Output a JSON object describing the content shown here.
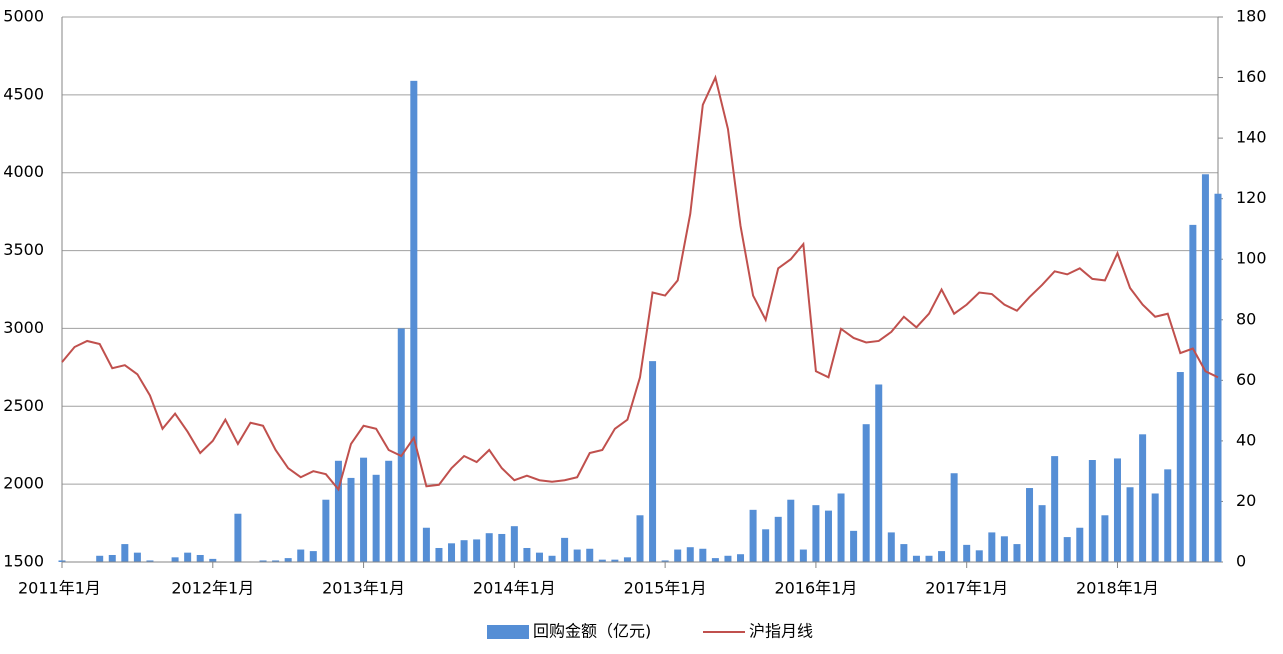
{
  "chart_data": {
    "type": "bar_line",
    "categories": [
      "2011年1月",
      null,
      null,
      null,
      null,
      null,
      null,
      null,
      null,
      null,
      null,
      null,
      "2012年1月",
      null,
      null,
      null,
      null,
      null,
      null,
      null,
      null,
      null,
      null,
      null,
      "2013年1月",
      null,
      null,
      null,
      null,
      null,
      null,
      null,
      null,
      null,
      null,
      null,
      "2014年1月",
      null,
      null,
      null,
      null,
      null,
      null,
      null,
      null,
      null,
      null,
      null,
      "2015年1月",
      null,
      null,
      null,
      null,
      null,
      null,
      null,
      null,
      null,
      null,
      null,
      "2016年1月",
      null,
      null,
      null,
      null,
      null,
      null,
      null,
      null,
      null,
      null,
      null,
      "2017年1月",
      null,
      null,
      null,
      null,
      null,
      null,
      null,
      null,
      null,
      null,
      null,
      "2018年1月",
      null,
      null,
      null,
      null,
      null,
      null,
      null,
      null
    ],
    "series": [
      {
        "name": "回购金额（亿元)",
        "type": "bar",
        "color": "#558ed5",
        "values": [
          1510,
          null,
          null,
          1540,
          1545,
          1615,
          1560,
          1510,
          null,
          1530,
          1560,
          1545,
          1520,
          null,
          1810,
          null,
          1510,
          1510,
          1525,
          1580,
          1570,
          1900,
          2150,
          2040,
          2170,
          2060,
          2150,
          3000,
          4590,
          1720,
          1590,
          1620,
          1640,
          1645,
          1685,
          1680,
          1730,
          1590,
          1560,
          1540,
          1655,
          1580,
          1585,
          1515,
          1515,
          1530,
          1800,
          2790,
          1510,
          1580,
          1595,
          1585,
          1525,
          1540,
          1550,
          1835,
          1710,
          1790,
          1900,
          1580,
          1865,
          1830,
          1940,
          1700,
          2385,
          2640,
          1690,
          1615,
          1540,
          1540,
          1570,
          2070,
          1610,
          1575,
          1690,
          1665,
          1615,
          1975,
          1865,
          2180,
          1660,
          1720,
          2155,
          1800,
          2165,
          1980,
          2320,
          1940,
          2095,
          2720,
          3665,
          3990,
          3865
        ]
      },
      {
        "name": "沪指月线",
        "type": "line",
        "axis": "y2",
        "color": "#c0504d",
        "values": [
          66,
          71,
          73,
          72,
          64,
          65,
          62,
          55,
          44,
          49,
          43,
          36,
          40,
          47,
          39,
          46,
          45,
          37,
          31,
          28,
          30,
          29,
          24,
          39,
          45,
          44,
          37,
          35,
          41,
          25,
          25.5,
          31,
          35,
          33,
          37,
          31,
          27,
          28.5,
          27,
          26.5,
          27,
          28,
          36,
          37,
          44,
          47,
          61,
          89,
          88,
          93,
          115,
          151,
          160,
          143,
          111,
          88,
          80,
          97,
          100,
          105,
          63,
          61,
          77,
          74,
          72.5,
          73,
          76,
          81,
          77.5,
          82,
          90,
          82,
          85,
          89,
          88.5,
          85,
          83,
          87.5,
          91.5,
          96,
          95,
          97,
          93.5,
          93,
          102,
          90.5,
          85,
          81,
          82,
          69,
          70.5,
          63,
          61
        ]
      }
    ],
    "ylim": [
      1500,
      5000
    ],
    "yticks": [
      1500,
      2000,
      2500,
      3000,
      3500,
      4000,
      4500,
      5000
    ],
    "y2lim": [
      0,
      180
    ],
    "y2ticks": [
      0,
      20,
      40,
      60,
      80,
      100,
      120,
      140,
      160,
      180
    ],
    "grid": true,
    "legend": "bottom"
  }
}
